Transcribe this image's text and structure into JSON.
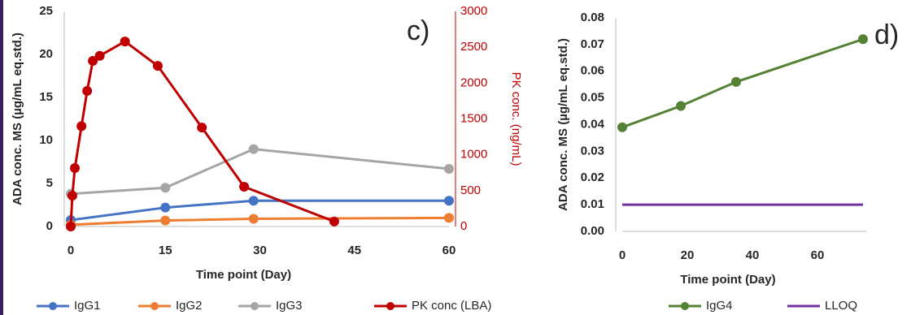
{
  "chart_data": [
    {
      "type": "line",
      "annotation": "c)",
      "y_label": "ADA conc. MS (µg/mL eq.std.)",
      "y2_label": "PK conc. (ng/mL)",
      "x_label": "Time point (Day)",
      "xlim": [
        0,
        60
      ],
      "xticks": [
        0,
        15,
        30,
        45,
        60
      ],
      "ylim": [
        0,
        25
      ],
      "yticks": [
        0,
        5,
        10,
        15,
        20,
        25
      ],
      "y2lim": [
        0,
        3000
      ],
      "y2ticks": [
        0,
        500,
        1000,
        1500,
        2000,
        2500,
        3000
      ],
      "series": [
        {
          "name": "IgG1",
          "color": "#4472c4",
          "x": [
            0,
            15,
            29,
            60
          ],
          "values": [
            0.75,
            2.2,
            3.0,
            3.0
          ]
        },
        {
          "name": "IgG2",
          "color": "#ed7d31",
          "x": [
            0,
            15,
            29,
            60
          ],
          "values": [
            0.2,
            0.7,
            0.9,
            1.0
          ]
        },
        {
          "name": "IgG3",
          "color": "#a5a5a5",
          "x": [
            0,
            15,
            29,
            60
          ],
          "values": [
            3.8,
            4.5,
            9.0,
            6.7
          ]
        },
        {
          "name": "PK conc (LBA)",
          "color": "#c00000",
          "axis": "y2",
          "x": [
            0,
            0.25,
            0.65,
            1.7,
            2.6,
            3.5,
            4.6,
            8.6,
            13.8,
            20.8,
            27.5,
            41.8
          ],
          "values": [
            0,
            430,
            815,
            1400,
            1890,
            2310,
            2380,
            2580,
            2240,
            1380,
            555,
            70
          ]
        }
      ]
    },
    {
      "type": "line",
      "annotation": "d)",
      "y_label": "ADA conc. MS (µg/mL eq.std.)",
      "x_label": "Time point (Day)",
      "xlim": [
        0,
        75
      ],
      "xticks": [
        0,
        20,
        40,
        60
      ],
      "ylim": [
        0,
        0.08
      ],
      "yticks": [
        {
          "value": 0,
          "label": "0.00"
        },
        {
          "value": 0.01,
          "label": "0.01"
        },
        {
          "value": 0.02,
          "label": "0.02"
        },
        {
          "value": 0.03,
          "label": "0.03"
        },
        {
          "value": 0.04,
          "label": "0.04"
        },
        {
          "value": 0.05,
          "label": "0.05"
        },
        {
          "value": 0.06,
          "label": "0.06"
        },
        {
          "value": 0.07,
          "label": "0.07"
        },
        {
          "value": 0.08,
          "label": "0.08"
        }
      ],
      "series": [
        {
          "name": "IgG4",
          "color": "#548235",
          "x": [
            0,
            18,
            35,
            74
          ],
          "values": [
            0.039,
            0.047,
            0.056,
            0.072
          ],
          "markers": true
        },
        {
          "name": "LLOQ",
          "color": "#7030a0",
          "x": [
            0,
            74
          ],
          "values": [
            0.01,
            0.01
          ],
          "markers": false
        }
      ]
    }
  ]
}
